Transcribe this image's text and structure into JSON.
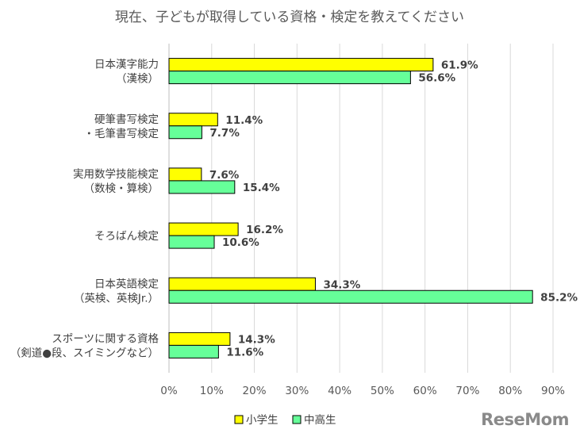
{
  "chart_data": {
    "type": "bar",
    "orientation": "horizontal",
    "title": "現在、子どもが取得している資格・検定を教えてください",
    "categories": [
      [
        "日本漢字能力",
        "（漢検）"
      ],
      [
        "硬筆書写検定",
        "・毛筆書写検定"
      ],
      [
        "実用数学技能検定",
        "（数検・算検）"
      ],
      [
        "そろばん検定"
      ],
      [
        "日本英語検定",
        "（英検、英検Jr.）"
      ],
      [
        "スポーツに関する資格",
        "（剣道●段、スイミングなど）"
      ]
    ],
    "series": [
      {
        "name": "小学生",
        "color": "#ffff00",
        "values": [
          61.9,
          11.4,
          7.6,
          16.2,
          34.3,
          14.3
        ]
      },
      {
        "name": "中高生",
        "color": "#66ff99",
        "values": [
          56.6,
          7.7,
          15.4,
          10.6,
          85.2,
          11.6
        ]
      }
    ],
    "xlim": [
      0,
      90
    ],
    "xticks": [
      "0%",
      "10%",
      "20%",
      "30%",
      "40%",
      "50%",
      "60%",
      "70%",
      "80%",
      "90%"
    ],
    "value_suffix": "%",
    "grid": true,
    "legend_position": "bottom"
  },
  "watermark": "ReseMom"
}
